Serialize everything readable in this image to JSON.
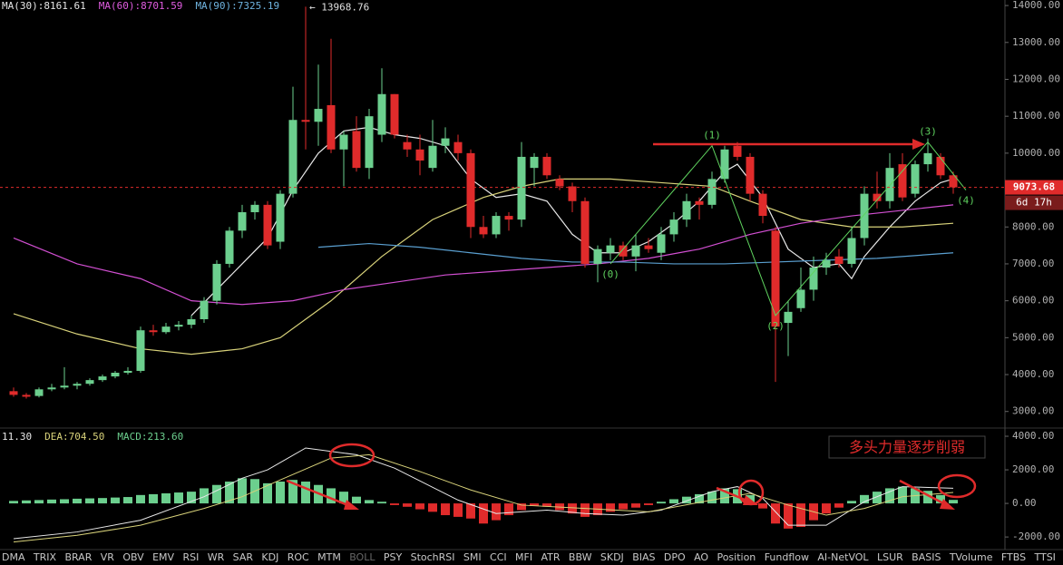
{
  "chart_data": {
    "type": "candlestick",
    "legend": [
      {
        "label": "MA(30):8161.61",
        "color": "#e6e6e6"
      },
      {
        "label": "MA(60):8701.59",
        "color": "#e05ce0"
      },
      {
        "label": "MA(90):7325.19",
        "color": "#6fb4e0"
      }
    ],
    "ylim": [
      2600,
      14150
    ],
    "yticks": [
      {
        "value": 3000,
        "label": "3000.00"
      },
      {
        "value": 4000,
        "label": "4000.00"
      },
      {
        "value": 5000,
        "label": "5000.00"
      },
      {
        "value": 6000,
        "label": "6000.00"
      },
      {
        "value": 7000,
        "label": "7000.00"
      },
      {
        "value": 8000,
        "label": "8000.00"
      },
      {
        "value": 9000,
        "label": "9000.00"
      },
      {
        "value": 10000,
        "label": "10000.00"
      },
      {
        "value": 11000,
        "label": "11000.00"
      },
      {
        "value": 12000,
        "label": "12000.00"
      },
      {
        "value": 13000,
        "label": "13000.00"
      },
      {
        "value": 14000,
        "label": "14000.00"
      }
    ],
    "up_color": "#6ccf8e",
    "down_color": "#e02b2b",
    "candles": {
      "open": [
        3550,
        3450,
        3420,
        3600,
        3650,
        3700,
        3750,
        3850,
        3950,
        4050,
        4100,
        5200,
        5150,
        5300,
        5350,
        5500,
        6000,
        7000,
        7900,
        8400,
        8600,
        7600,
        8900,
        10900,
        10850,
        11300,
        10100,
        10600,
        9600,
        10500,
        11600,
        10300,
        10100,
        9600,
        10200,
        10300,
        10000,
        8000,
        7800,
        8300,
        8200,
        9600,
        9900,
        9300,
        9100,
        8700,
        7000,
        7300,
        7500,
        7200,
        7500,
        7300,
        7800,
        8200,
        8700,
        8600,
        9300,
        10200,
        9900,
        8900,
        7900,
        5400,
        5800,
        6300,
        6900,
        7200,
        7000,
        7700,
        8900,
        8700,
        9700,
        8900,
        9700,
        9900,
        9400
      ],
      "high": [
        3650,
        3500,
        3650,
        3750,
        4200,
        3800,
        3900,
        4000,
        4100,
        4200,
        5300,
        5350,
        5400,
        5450,
        5600,
        6100,
        7100,
        8000,
        8600,
        8700,
        8700,
        9000,
        11800,
        13968.76,
        12400,
        13100,
        10600,
        11000,
        11200,
        12300,
        11600,
        10500,
        10500,
        10900,
        10700,
        10500,
        10100,
        8300,
        8400,
        8400,
        10300,
        10000,
        10000,
        9400,
        9200,
        8800,
        7500,
        7700,
        7600,
        7800,
        7700,
        8000,
        8400,
        8900,
        8800,
        9500,
        10200,
        10300,
        10000,
        9000,
        8000,
        6000,
        6900,
        7200,
        7300,
        7400,
        8000,
        9100,
        9500,
        10000,
        10000,
        9800,
        10400,
        10000,
        9500
      ],
      "low": [
        3400,
        3350,
        3380,
        3550,
        3600,
        3600,
        3700,
        3800,
        3900,
        4000,
        4050,
        5050,
        5100,
        5200,
        5250,
        5400,
        5900,
        6900,
        7700,
        8200,
        7400,
        7400,
        8800,
        10100,
        10200,
        10000,
        9100,
        9500,
        9300,
        10300,
        10400,
        9900,
        9400,
        9500,
        10000,
        9800,
        7700,
        7700,
        7700,
        7900,
        8000,
        9100,
        9300,
        9000,
        8400,
        6900,
        6500,
        7100,
        7100,
        6800,
        7300,
        7100,
        7600,
        8000,
        8200,
        8500,
        9200,
        9800,
        8700,
        8100,
        3800,
        4500,
        5700,
        6000,
        6700,
        6900,
        6900,
        7500,
        8500,
        8500,
        8700,
        8800,
        9500,
        9300,
        8900
      ],
      "close": [
        3450,
        3400,
        3600,
        3650,
        3700,
        3750,
        3850,
        3950,
        4050,
        4100,
        5200,
        5150,
        5300,
        5350,
        5500,
        6000,
        7000,
        7900,
        8400,
        8600,
        7500,
        8900,
        10900,
        10850,
        11200,
        10100,
        10500,
        9600,
        11000,
        11600,
        10500,
        10100,
        9800,
        10200,
        10400,
        10000,
        8000,
        7800,
        8300,
        8200,
        9900,
        9900,
        9400,
        9100,
        8700,
        7000,
        7400,
        7500,
        7200,
        7500,
        7400,
        7800,
        8200,
        8700,
        8600,
        9300,
        10100,
        9900,
        8900,
        8300,
        5300,
        5700,
        6300,
        6900,
        7100,
        7000,
        7700,
        8900,
        8700,
        9600,
        8800,
        9700,
        10000,
        9400,
        9073.68
      ]
    },
    "lines": [
      {
        "color": "#e8e8e8",
        "x": [
          14,
          16,
          18,
          20,
          22,
          24,
          26,
          28,
          30,
          32,
          34,
          36,
          38,
          40,
          42,
          44,
          46,
          48,
          50,
          52,
          54,
          56,
          57,
          59,
          61,
          63,
          65,
          66,
          67,
          69,
          71,
          73,
          74
        ],
        "values": [
          5600,
          6300,
          7000,
          7700,
          9000,
          10000,
          10600,
          10700,
          10500,
          10400,
          10200,
          9300,
          8800,
          8900,
          8700,
          7800,
          7300,
          7300,
          7600,
          8100,
          8700,
          9500,
          9700,
          8800,
          7400,
          6900,
          7000,
          6600,
          7200,
          8000,
          8700,
          9200,
          9300
        ]
      },
      {
        "color": "#d8d27a",
        "x": [
          0,
          5,
          10,
          14,
          18,
          21,
          25,
          29,
          33,
          37,
          40,
          43,
          47,
          51,
          55,
          58,
          62,
          66,
          70,
          74
        ],
        "values": [
          5650,
          5100,
          4700,
          4550,
          4700,
          5000,
          6000,
          7200,
          8200,
          8800,
          9100,
          9300,
          9300,
          9200,
          9100,
          8700,
          8200,
          8000,
          8000,
          8100
        ]
      },
      {
        "color": "#d24fd2",
        "x": [
          0,
          5,
          10,
          14,
          18,
          22,
          26,
          30,
          34,
          38,
          42,
          46,
          50,
          54,
          58,
          62,
          66,
          70,
          74
        ],
        "values": [
          7700,
          7000,
          6600,
          6000,
          5900,
          6000,
          6300,
          6500,
          6700,
          6800,
          6900,
          7000,
          7150,
          7400,
          7800,
          8100,
          8300,
          8450,
          8600
        ]
      },
      {
        "color": "#5a9fd0",
        "x": [
          24,
          28,
          32,
          36,
          40,
          44,
          48,
          52,
          56,
          60,
          64,
          68,
          72,
          74
        ],
        "values": [
          7450,
          7550,
          7450,
          7300,
          7150,
          7050,
          7050,
          7000,
          7000,
          7050,
          7100,
          7150,
          7250,
          7300
        ]
      }
    ],
    "max_label": "← 13968.76",
    "last_price": {
      "value": 9073.68,
      "label": "9073.68"
    },
    "countdown": "6d 17h",
    "waves": {
      "color": "#5fd35f",
      "labels": [
        "(0)",
        "(1)",
        "(2)",
        "(3)",
        "(4)"
      ],
      "x": [
        47,
        55,
        60,
        72,
        75
      ],
      "values": [
        7000,
        10200,
        5600,
        10300,
        9000
      ]
    },
    "annotation": "多头力量逐步削弱",
    "macd": {
      "legend": [
        {
          "label": "11.30",
          "color": "#e6e6e6"
        },
        {
          "label": "DEA:704.50",
          "color": "#d8d27a"
        },
        {
          "label": "MACD:213.60",
          "color": "#6ccf8e"
        }
      ],
      "ylim": [
        -2750,
        4380
      ],
      "yticks": [
        {
          "value": -2000,
          "label": "-2000.00"
        },
        {
          "value": 0,
          "label": "0.00"
        },
        {
          "value": 2000,
          "label": "2000.00"
        },
        {
          "value": 4000,
          "label": "4000.00"
        }
      ],
      "histogram": [
        150,
        180,
        200,
        230,
        250,
        280,
        300,
        320,
        350,
        380,
        500,
        550,
        600,
        650,
        700,
        900,
        1100,
        1300,
        1500,
        1450,
        1200,
        1300,
        1400,
        1300,
        1100,
        900,
        700,
        400,
        200,
        100,
        -100,
        -200,
        -350,
        -500,
        -700,
        -800,
        -900,
        -1200,
        -1000,
        -700,
        -400,
        -150,
        -200,
        -400,
        -600,
        -800,
        -700,
        -500,
        -350,
        -250,
        -100,
        100,
        250,
        400,
        550,
        700,
        900,
        850,
        500,
        -300,
        -1200,
        -1500,
        -1400,
        -1000,
        -600,
        -250,
        150,
        500,
        700,
        900,
        1000,
        900,
        750,
        500,
        210
      ],
      "dif": {
        "color": "#e8e8e8",
        "x": [
          0,
          5,
          10,
          15,
          18,
          20,
          23,
          27,
          30,
          35,
          38,
          42,
          45,
          48,
          51,
          55,
          57,
          59,
          61,
          64,
          67,
          70,
          74
        ],
        "values": [
          -2100,
          -1700,
          -1000,
          400,
          1500,
          2000,
          3300,
          2900,
          2100,
          200,
          -600,
          -400,
          -600,
          -700,
          -400,
          700,
          1000,
          300,
          -1300,
          -1300,
          100,
          1000,
          900
        ]
      },
      "dea": {
        "color": "#d8d27a",
        "x": [
          0,
          5,
          10,
          15,
          18,
          21,
          25,
          28,
          32,
          36,
          40,
          45,
          50,
          55,
          58,
          61,
          64,
          67,
          70,
          74
        ],
        "values": [
          -2300,
          -1900,
          -1300,
          -300,
          400,
          1400,
          2700,
          2900,
          1900,
          800,
          -100,
          -300,
          -500,
          200,
          600,
          -100,
          -700,
          -300,
          400,
          650
        ]
      }
    },
    "tabs": [
      "DMA",
      "TRIX",
      "BRAR",
      "VR",
      "OBV",
      "EMV",
      "RSI",
      "WR",
      "SAR",
      "KDJ",
      "ROC",
      "MTM",
      "BOLL",
      "PSY",
      "StochRSI",
      "SMI",
      "CCI",
      "MFI",
      "ATR",
      "BBW",
      "SKDJ",
      "BIAS",
      "DPO",
      "AO",
      "Position",
      "Fundflow",
      "AI-NetVOL",
      "LSUR",
      "BASIS",
      "TVolume",
      "FTBS",
      "TTSI"
    ],
    "dimmed_tab": 12
  }
}
